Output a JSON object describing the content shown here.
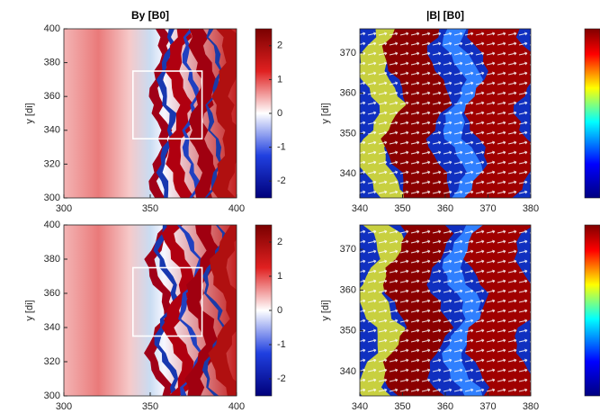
{
  "chart_data": [
    {
      "type": "heatmap",
      "title": "By [B0]",
      "ylabel": "y [di]",
      "colormap": "bwr",
      "xlim": [
        300,
        400
      ],
      "ylim": [
        300,
        400
      ],
      "xticks": [
        300,
        350,
        400
      ],
      "yticks": [
        300,
        320,
        340,
        360,
        380,
        400
      ],
      "clim": [
        -2.5,
        2.5
      ],
      "cticks": [
        -2,
        -1,
        0,
        1,
        2
      ],
      "box": {
        "x": [
          340,
          380
        ],
        "y": [
          335,
          375
        ]
      }
    },
    {
      "type": "heatmap",
      "title": "|B| [B0]",
      "ylabel": "y [di]",
      "colormap": "jet",
      "xlim": [
        340,
        380
      ],
      "ylim": [
        334,
        376
      ],
      "xticks": [
        340,
        350,
        360,
        370,
        380
      ],
      "yticks": [
        340,
        350,
        360,
        370
      ]
    },
    {
      "type": "heatmap",
      "ylabel": "y [di]",
      "colormap": "bwr",
      "xlim": [
        300,
        400
      ],
      "ylim": [
        300,
        400
      ],
      "xticks": [
        300,
        350,
        400
      ],
      "yticks": [
        300,
        320,
        340,
        360,
        380,
        400
      ],
      "clim": [
        -2.5,
        2.5
      ],
      "cticks": [
        -2,
        -1,
        0,
        1,
        2
      ],
      "box": {
        "x": [
          340,
          380
        ],
        "y": [
          335,
          375
        ]
      }
    },
    {
      "type": "heatmap",
      "ylabel": "y [di]",
      "colormap": "jet",
      "xlim": [
        340,
        380
      ],
      "ylim": [
        334,
        376
      ],
      "xticks": [
        340,
        350,
        360,
        370,
        380
      ],
      "yticks": [
        340,
        350,
        360,
        370
      ]
    }
  ]
}
